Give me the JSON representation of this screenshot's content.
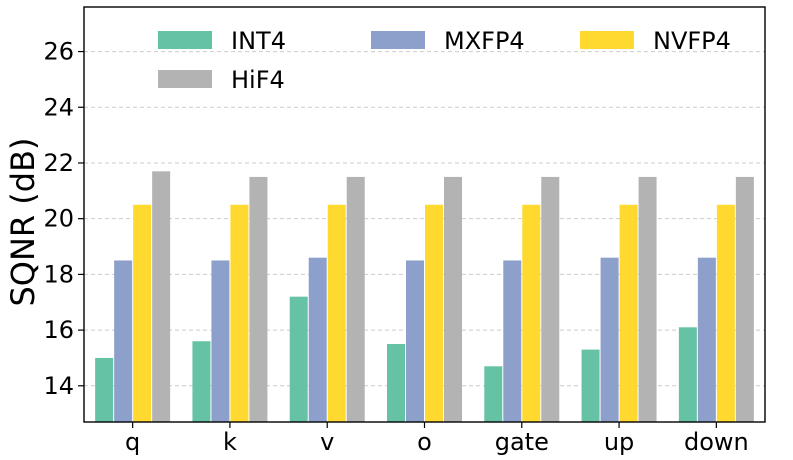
{
  "chart_data": {
    "type": "bar",
    "title": "",
    "xlabel": "",
    "ylabel": "SQNR (dB)",
    "ylim": [
      12.7,
      27.6
    ],
    "yticks": [
      14,
      16,
      18,
      20,
      22,
      24,
      26
    ],
    "grid": true,
    "legend_position": "top",
    "categories": [
      "q",
      "k",
      "v",
      "o",
      "gate",
      "up",
      "down"
    ],
    "series": [
      {
        "name": "INT4",
        "color": "#66c2a5",
        "values": [
          15.0,
          15.6,
          17.2,
          15.5,
          14.7,
          15.3,
          16.1
        ]
      },
      {
        "name": "MXFP4",
        "color": "#8da0cb",
        "values": [
          18.5,
          18.5,
          18.6,
          18.5,
          18.5,
          18.6,
          18.6
        ]
      },
      {
        "name": "NVFP4",
        "color": "#ffd92f",
        "values": [
          20.5,
          20.5,
          20.5,
          20.5,
          20.5,
          20.5,
          20.5
        ]
      },
      {
        "name": "HiF4",
        "color": "#b3b3b3",
        "values": [
          21.7,
          21.5,
          21.5,
          21.5,
          21.5,
          21.5,
          21.5
        ]
      }
    ]
  }
}
